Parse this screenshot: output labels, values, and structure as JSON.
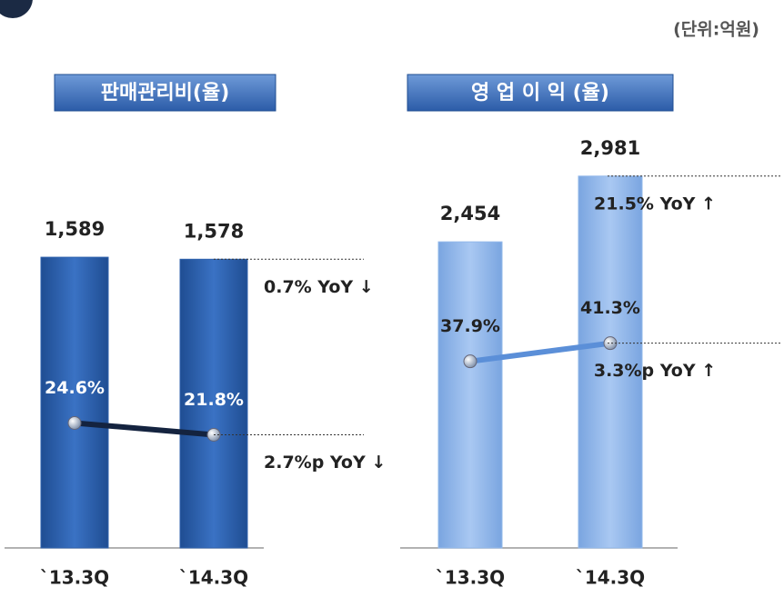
{
  "unit_note": "(단위:억원)",
  "chart_data": [
    {
      "type": "bar",
      "title": "판매관리비(율)",
      "categories": [
        "`13.3Q",
        "`14.3Q"
      ],
      "ylim": [
        0,
        2250
      ],
      "y2lim": [
        -5,
        92.5
      ],
      "series": [
        {
          "type": "bar",
          "color": "#2f62ad",
          "values": [
            1589,
            1578
          ],
          "value_labels": [
            "1,589",
            "1,578"
          ]
        },
        {
          "type": "line",
          "axis": "y2",
          "color": "#14233f",
          "values": [
            24.6,
            21.8
          ],
          "value_labels": [
            "24.6%",
            "21.8%"
          ]
        }
      ],
      "annotations": [
        "0.7% YoY ↓",
        "2.7%p YoY ↓"
      ]
    },
    {
      "type": "bar",
      "title": "영 업 이 익 (율)",
      "categories": [
        "`13.3Q",
        "`14.3Q"
      ],
      "ylim": [
        0,
        3300
      ],
      "y2lim": [
        3,
        80
      ],
      "series": [
        {
          "type": "bar",
          "color": "#92b8ea",
          "values": [
            2454,
            2981
          ],
          "value_labels": [
            "2,454",
            "2,981"
          ]
        },
        {
          "type": "line",
          "axis": "y2",
          "color": "#5b8fd8",
          "values": [
            37.9,
            41.3
          ],
          "value_labels": [
            "37.9%",
            "41.3%"
          ]
        }
      ],
      "annotations": [
        "21.5% YoY ↑",
        "3.3%p YoY ↑"
      ]
    }
  ]
}
